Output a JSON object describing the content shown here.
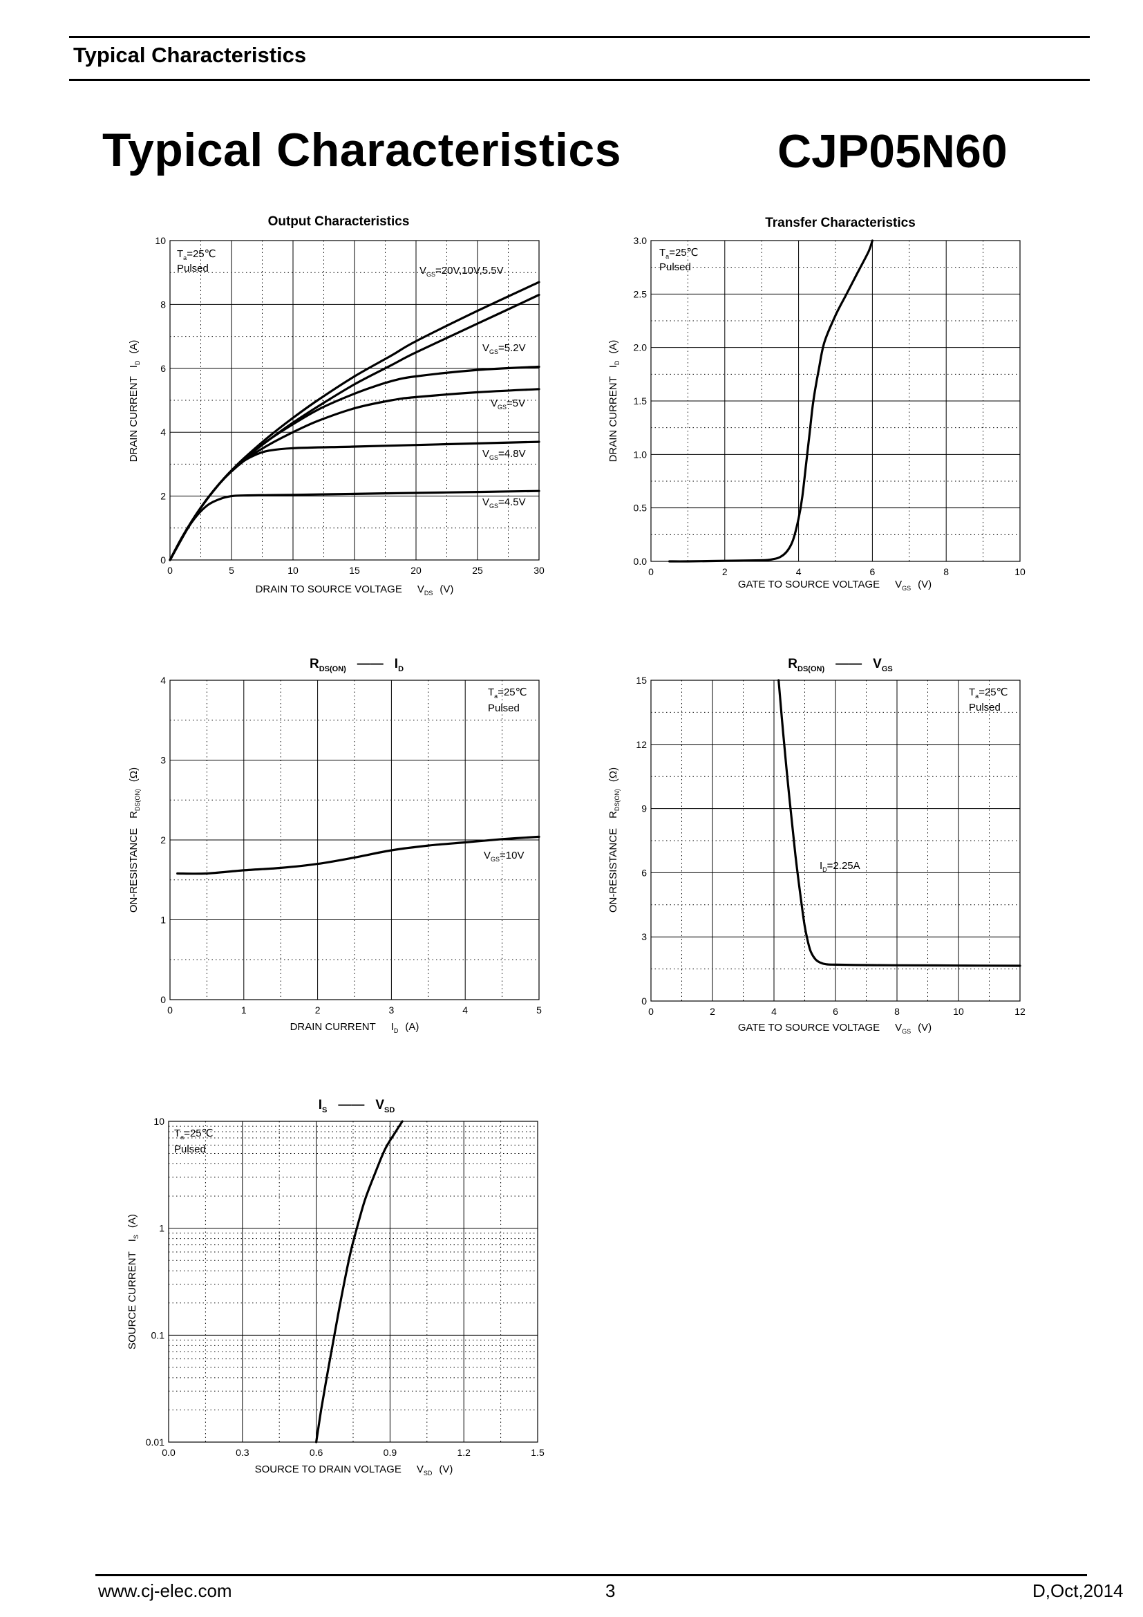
{
  "header": {
    "section_title": "Typical Characteristics"
  },
  "page_title": "Typical Characteristics",
  "part_number": "CJP05N60",
  "footer": {
    "website": "www.cj-elec.com",
    "page_number": "3",
    "revision": "D,Oct,2014"
  },
  "chart_data": [
    {
      "id": "output",
      "type": "line",
      "title": "Output Characteristics",
      "xlabel": {
        "main": "DRAIN TO SOURCE VOLTAGE",
        "sym": "V",
        "sub": "DS",
        "unit": "(V)"
      },
      "ylabel": {
        "main": "DRAIN CURRENT",
        "sym": "I",
        "sub": "D",
        "unit": "(A)"
      },
      "xlim": [
        0,
        30
      ],
      "ylim": [
        0,
        10
      ],
      "xticks": [
        "0",
        "5",
        "10",
        "15",
        "20",
        "25",
        "30"
      ],
      "yticks": [
        "0",
        "2",
        "4",
        "6",
        "8",
        "10"
      ],
      "conditions": [
        "T=25℃",
        "Pulsed"
      ],
      "cond_text": {
        "t_sym": "T",
        "t_sub": "a",
        "t_val": "=25℃",
        "pulsed": "Pulsed"
      },
      "series": [
        {
          "label": "V GS=20V,10V,5.5V",
          "x": [
            0,
            1,
            2,
            3,
            4,
            5,
            6,
            8,
            10,
            12,
            15,
            18,
            20,
            25,
            30
          ],
          "y": [
            0,
            0.72,
            1.35,
            1.9,
            2.38,
            2.8,
            3.18,
            3.85,
            4.45,
            5.0,
            5.75,
            6.4,
            6.85,
            7.8,
            8.7
          ]
        },
        {
          "label": "",
          "x": [
            0,
            1,
            2,
            3,
            4,
            5,
            6,
            8,
            10,
            12,
            15,
            18,
            20,
            25,
            30
          ],
          "y": [
            0,
            0.72,
            1.35,
            1.9,
            2.38,
            2.8,
            3.15,
            3.75,
            4.3,
            4.8,
            5.5,
            6.1,
            6.5,
            7.4,
            8.3
          ]
        },
        {
          "label": "V GS=5.2V",
          "x": [
            0,
            2,
            4,
            6,
            8,
            10,
            12,
            14,
            16,
            18,
            20,
            25,
            30
          ],
          "y": [
            0,
            1.35,
            2.38,
            3.15,
            3.75,
            4.25,
            4.7,
            5.05,
            5.35,
            5.6,
            5.75,
            5.95,
            6.05
          ]
        },
        {
          "label": "V GS=5V",
          "x": [
            0,
            2,
            4,
            6,
            8,
            10,
            12,
            15,
            18,
            20,
            25,
            30
          ],
          "y": [
            0,
            1.35,
            2.38,
            3.1,
            3.6,
            4.0,
            4.35,
            4.75,
            5.0,
            5.1,
            5.25,
            5.35
          ]
        },
        {
          "label": "V GS=4.8V",
          "x": [
            0,
            1,
            2,
            3,
            4,
            5,
            6,
            7,
            8,
            10,
            15,
            20,
            25,
            30
          ],
          "y": [
            0,
            0.72,
            1.35,
            1.9,
            2.38,
            2.8,
            3.1,
            3.3,
            3.42,
            3.5,
            3.55,
            3.6,
            3.65,
            3.7
          ]
        },
        {
          "label": "V GS=4.5V",
          "x": [
            0,
            1,
            2,
            3,
            4,
            5,
            6,
            8,
            10,
            15,
            20,
            25,
            30
          ],
          "y": [
            0,
            0.72,
            1.3,
            1.7,
            1.9,
            2.0,
            2.02,
            2.03,
            2.04,
            2.07,
            2.1,
            2.13,
            2.16
          ]
        }
      ]
    },
    {
      "id": "transfer",
      "type": "line",
      "title": "Transfer Characteristics",
      "xlabel": {
        "main": "GATE TO SOURCE VOLTAGE",
        "sym": "V",
        "sub": "GS",
        "unit": "(V)"
      },
      "ylabel": {
        "main": "DRAIN CURRENT",
        "sym": "I",
        "sub": "D",
        "unit": "(A)"
      },
      "xlim": [
        0,
        10
      ],
      "ylim": [
        0,
        3
      ],
      "xticks": [
        "0",
        "2",
        "4",
        "6",
        "8",
        "10"
      ],
      "yticks": [
        "0.0",
        "0.5",
        "1.0",
        "1.5",
        "2.0",
        "2.5",
        "3.0"
      ],
      "cond_text": {
        "t_sym": "T",
        "t_sub": "a",
        "t_val": "=25℃",
        "pulsed": "Pulsed"
      },
      "series": [
        {
          "label": "",
          "x": [
            0.5,
            1,
            2,
            3,
            3.3,
            3.5,
            3.7,
            3.85,
            4.0,
            4.1,
            4.2,
            4.3,
            4.4,
            4.55,
            4.7,
            5.0,
            5.3,
            5.6,
            5.9,
            6.0
          ],
          "y": [
            0.0,
            0.0,
            0.005,
            0.01,
            0.02,
            0.04,
            0.1,
            0.2,
            0.4,
            0.6,
            0.9,
            1.2,
            1.5,
            1.8,
            2.05,
            2.3,
            2.5,
            2.7,
            2.9,
            3.0
          ]
        }
      ]
    },
    {
      "id": "rds-id",
      "type": "line",
      "title_parts": {
        "a": "R",
        "a_sub": "DS(ON)",
        "dash": "——",
        "b": "I",
        "b_sub": "D"
      },
      "xlabel": {
        "main": "DRAIN CURRENT",
        "sym": "I",
        "sub": "D",
        "unit": "(A)"
      },
      "ylabel": {
        "main": "ON-RESISTANCE",
        "sym": "R",
        "sub": "DS(ON)",
        "unit": "(Ω)"
      },
      "xlim": [
        0,
        5
      ],
      "ylim": [
        0,
        4
      ],
      "xticks": [
        "0",
        "1",
        "2",
        "3",
        "4",
        "5"
      ],
      "yticks": [
        "0",
        "1",
        "2",
        "3",
        "4"
      ],
      "cond_text": {
        "t_sym": "T",
        "t_sub": "a",
        "t_val": "=25℃",
        "pulsed": "Pulsed"
      },
      "annotation": {
        "sym": "V",
        "sub": "GS",
        "val": "=10V"
      },
      "series": [
        {
          "label": "V GS=10V",
          "x": [
            0.1,
            0.5,
            1.0,
            1.5,
            2.0,
            2.5,
            3.0,
            3.5,
            4.0,
            4.5,
            5.0
          ],
          "y": [
            1.58,
            1.58,
            1.62,
            1.65,
            1.7,
            1.78,
            1.87,
            1.93,
            1.97,
            2.01,
            2.04
          ]
        }
      ]
    },
    {
      "id": "rds-vgs",
      "type": "line",
      "title_parts": {
        "a": "R",
        "a_sub": "DS(ON)",
        "dash": "——",
        "b": "V",
        "b_sub": "GS"
      },
      "xlabel": {
        "main": "GATE TO SOURCE VOLTAGE",
        "sym": "V",
        "sub": "GS",
        "unit": "(V)"
      },
      "ylabel": {
        "main": "ON-RESISTANCE",
        "sym": "R",
        "sub": "DS(ON)",
        "unit": "(Ω)"
      },
      "xlim": [
        0,
        12
      ],
      "ylim": [
        0,
        15
      ],
      "xticks": [
        "0",
        "2",
        "4",
        "6",
        "8",
        "10",
        "12"
      ],
      "yticks": [
        "0",
        "3",
        "6",
        "9",
        "12",
        "15"
      ],
      "cond_text": {
        "t_sym": "T",
        "t_sub": "a",
        "t_val": "=25℃",
        "pulsed": "Pulsed"
      },
      "annotation": {
        "sym": "I",
        "sub": "D",
        "val": "=2.25A"
      },
      "series": [
        {
          "label": "I D=2.25A",
          "x": [
            4.15,
            4.3,
            4.5,
            4.7,
            4.9,
            5.0,
            5.1,
            5.2,
            5.35,
            5.5,
            5.7,
            6.0,
            7,
            8,
            10,
            12
          ],
          "y": [
            15,
            12.5,
            9.5,
            6.8,
            4.5,
            3.5,
            2.8,
            2.3,
            1.95,
            1.8,
            1.72,
            1.7,
            1.68,
            1.67,
            1.66,
            1.65
          ]
        }
      ]
    },
    {
      "id": "is-vsd",
      "type": "line",
      "title_parts": {
        "a": "I",
        "a_sub": "S",
        "dash": "——",
        "b": "V",
        "b_sub": "SD"
      },
      "xlabel": {
        "main": "SOURCE TO DRAIN VOLTAGE",
        "sym": "V",
        "sub": "SD",
        "unit": "(V)"
      },
      "ylabel": {
        "main": "SOURCE CURRENT",
        "sym": "I",
        "sub": "S",
        "unit": "(A)"
      },
      "xlim": [
        0,
        1.5
      ],
      "ylim": [
        0.01,
        10
      ],
      "yscale": "log",
      "xticks": [
        "0.0",
        "0.3",
        "0.6",
        "0.9",
        "1.2",
        "1.5"
      ],
      "yticks": [
        "0.01",
        "0.1",
        "1",
        "10"
      ],
      "cond_text": {
        "t_sym": "T",
        "t_sub": "a",
        "t_val": "=25℃",
        "pulsed": "Pulsed"
      },
      "series": [
        {
          "label": "",
          "x": [
            0.6,
            0.62,
            0.65,
            0.68,
            0.71,
            0.74,
            0.77,
            0.8,
            0.84,
            0.88,
            0.92,
            0.95
          ],
          "y": [
            0.01,
            0.02,
            0.05,
            0.12,
            0.28,
            0.6,
            1.1,
            1.9,
            3.3,
            5.5,
            7.8,
            10
          ]
        }
      ]
    }
  ]
}
